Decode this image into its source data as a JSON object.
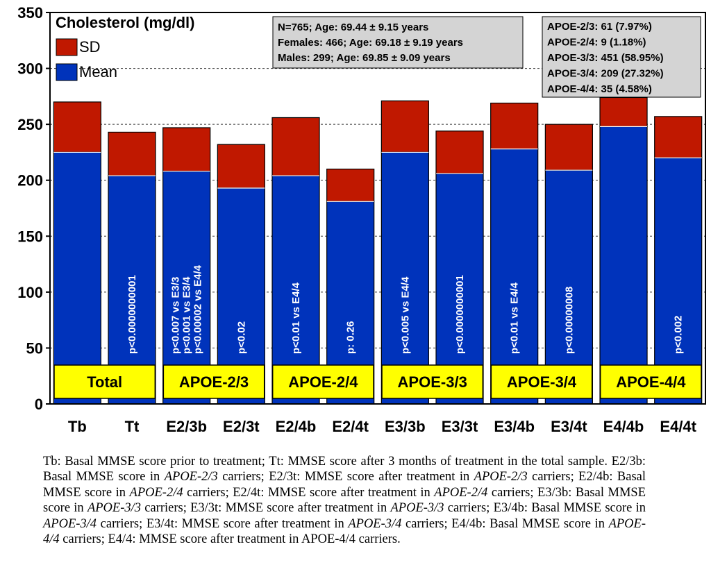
{
  "chart_data": {
    "type": "bar",
    "stacked": true,
    "title": "Cholesterol (mg/dl)",
    "categories": [
      "Tb",
      "Tt",
      "E2/3b",
      "E2/3t",
      "E2/4b",
      "E2/4t",
      "E3/3b",
      "E3/3t",
      "E3/4b",
      "E3/4t",
      "E4/4b",
      "E4/4t"
    ],
    "series": [
      {
        "name": "Mean",
        "color": "#0033bb",
        "values": [
          225,
          204,
          208,
          193,
          204,
          181,
          225,
          206,
          228,
          209,
          248,
          220
        ]
      },
      {
        "name": "SD",
        "color": "#c01800",
        "values": [
          45,
          39,
          39,
          39,
          52,
          29,
          46,
          38,
          41,
          41,
          26,
          37
        ]
      }
    ],
    "legend": [
      "SD",
      "Mean"
    ],
    "legend_position": "top-left",
    "ylim": [
      0,
      350
    ],
    "yticks": [
      0,
      50,
      100,
      150,
      200,
      250,
      300,
      350
    ],
    "grid": true,
    "bar_annotations": [
      {
        "category": "Tt",
        "lines": [
          "p<0.0000000001"
        ]
      },
      {
        "category": "E2/3b",
        "lines": [
          "p<0.007 vs E3/3",
          "p<0.001 vs E3/4",
          "p<0.00002 vs E4/4"
        ]
      },
      {
        "category": "E2/3t",
        "lines": [
          "p<0.02"
        ]
      },
      {
        "category": "E2/4b",
        "lines": [
          "p<0.01 vs E4/4"
        ]
      },
      {
        "category": "E2/4t",
        "lines": [
          "p: 0.26"
        ]
      },
      {
        "category": "E3/3b",
        "lines": [
          "p<0.005 vs E4/4"
        ]
      },
      {
        "category": "E3/3t",
        "lines": [
          "p<0.0000000001"
        ]
      },
      {
        "category": "E3/4b",
        "lines": [
          "p<0.01 vs E4/4"
        ]
      },
      {
        "category": "E3/4t",
        "lines": [
          "p<0.00000008"
        ]
      },
      {
        "category": "E4/4t",
        "lines": [
          "p<0.002"
        ]
      }
    ],
    "group_labels": [
      "Total",
      "APOE-2/3",
      "APOE-2/4",
      "APOE-3/3",
      "APOE-3/4",
      "APOE-4/4"
    ],
    "sample_info": [
      "N=765; Age: 69.44 ± 9.15 years",
      "Females: 466; Age: 69.18 ± 9.19 years",
      "Males: 299; Age: 69.85 ± 9.09 years"
    ],
    "genotype_counts": [
      "APOE-2/3: 61 (7.97%)",
      "APOE-2/4: 9 (1.18%)",
      "APOE-3/3: 451 (58.95%)",
      "APOE-3/4: 209 (27.32%)",
      "APOE-4/4: 35 (4.58%)"
    ],
    "colors": {
      "label_box": "#ffff00",
      "info_box": "#d4d4d4"
    }
  },
  "caption": {
    "parts": [
      {
        "t": "Tb: Basal MMSE score prior to treatment; Tt: MMSE score after 3 months of treatment in the total sample. E2/3b: Basal MMSE score in "
      },
      {
        "t": "APOE-2/3",
        "i": true
      },
      {
        "t": " carriers; E2/3t: MMSE score after treatment in "
      },
      {
        "t": "APOE-2/3",
        "i": true
      },
      {
        "t": " carriers; E2/4b: Basal MMSE score in "
      },
      {
        "t": "APOE-2/4",
        "i": true
      },
      {
        "t": " carriers; E2/4t: MMSE score after treatment in "
      },
      {
        "t": "APOE-2/4",
        "i": true
      },
      {
        "t": " carriers; E3/3b: Basal MMSE score in "
      },
      {
        "t": "APOE-3/3",
        "i": true
      },
      {
        "t": " carriers; E3/3t: MMSE score after treatment in "
      },
      {
        "t": "APOE-3/3",
        "i": true
      },
      {
        "t": " carriers; E3/4b: Basal MMSE score in "
      },
      {
        "t": "APOE-3/4",
        "i": true
      },
      {
        "t": " carriers; E3/4t: MMSE score after treatment in "
      },
      {
        "t": "APOE-3/4",
        "i": true
      },
      {
        "t": " carriers; E4/4b: Basal MMSE score in "
      },
      {
        "t": "APOE-4/4",
        "i": true
      },
      {
        "t": " carriers; E4/4: MMSE score after treatment in APOE-4/4 carriers."
      }
    ]
  }
}
